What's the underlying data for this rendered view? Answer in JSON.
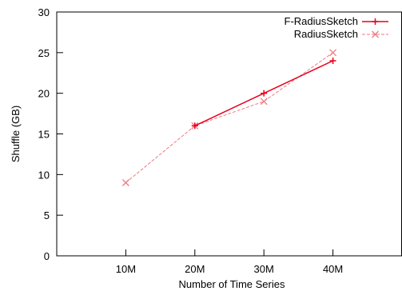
{
  "chart_data": {
    "type": "line",
    "title": "",
    "xlabel": "Number of Time Series",
    "ylabel": "Shuffle (GB)",
    "categories": [
      "10M",
      "20M",
      "30M",
      "40M"
    ],
    "xlim": [
      0,
      5
    ],
    "ylim": [
      0,
      30
    ],
    "yticks": [
      0,
      5,
      10,
      15,
      20,
      25,
      30
    ],
    "grid": false,
    "legend_position": "top-right",
    "series": [
      {
        "name": "F-RadiusSketch",
        "x": [
          2,
          3,
          4
        ],
        "values": [
          16,
          20,
          24
        ],
        "color": "#e8001c",
        "line_style": "solid",
        "marker": "plus"
      },
      {
        "name": "RadiusSketch",
        "x": [
          1,
          2,
          3,
          4
        ],
        "values": [
          9,
          16,
          19,
          25
        ],
        "color": "#f07a82",
        "line_style": "dashed",
        "marker": "cross"
      }
    ]
  }
}
